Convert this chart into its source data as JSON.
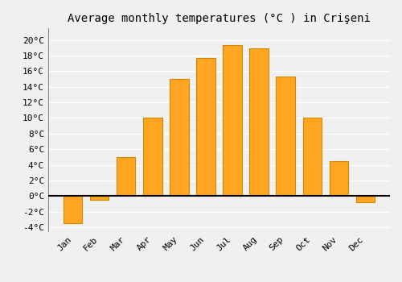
{
  "title": "Average monthly temperatures (°C ) in Crişeni",
  "months": [
    "Jan",
    "Feb",
    "Mar",
    "Apr",
    "May",
    "Jun",
    "Jul",
    "Aug",
    "Sep",
    "Oct",
    "Nov",
    "Dec"
  ],
  "values": [
    -3.5,
    -0.5,
    5.0,
    10.0,
    15.0,
    17.7,
    19.3,
    18.9,
    15.3,
    10.0,
    4.5,
    -0.8
  ],
  "bar_color": "#FFA520",
  "bar_edge_color": "#CC8800",
  "background_color": "#f0f0f0",
  "grid_color": "#ffffff",
  "ylim": [
    -4.5,
    21.5
  ],
  "yticks": [
    -4,
    -2,
    0,
    2,
    4,
    6,
    8,
    10,
    12,
    14,
    16,
    18,
    20
  ],
  "title_fontsize": 10,
  "tick_fontsize": 8,
  "font_family": "monospace",
  "bar_width": 0.7
}
